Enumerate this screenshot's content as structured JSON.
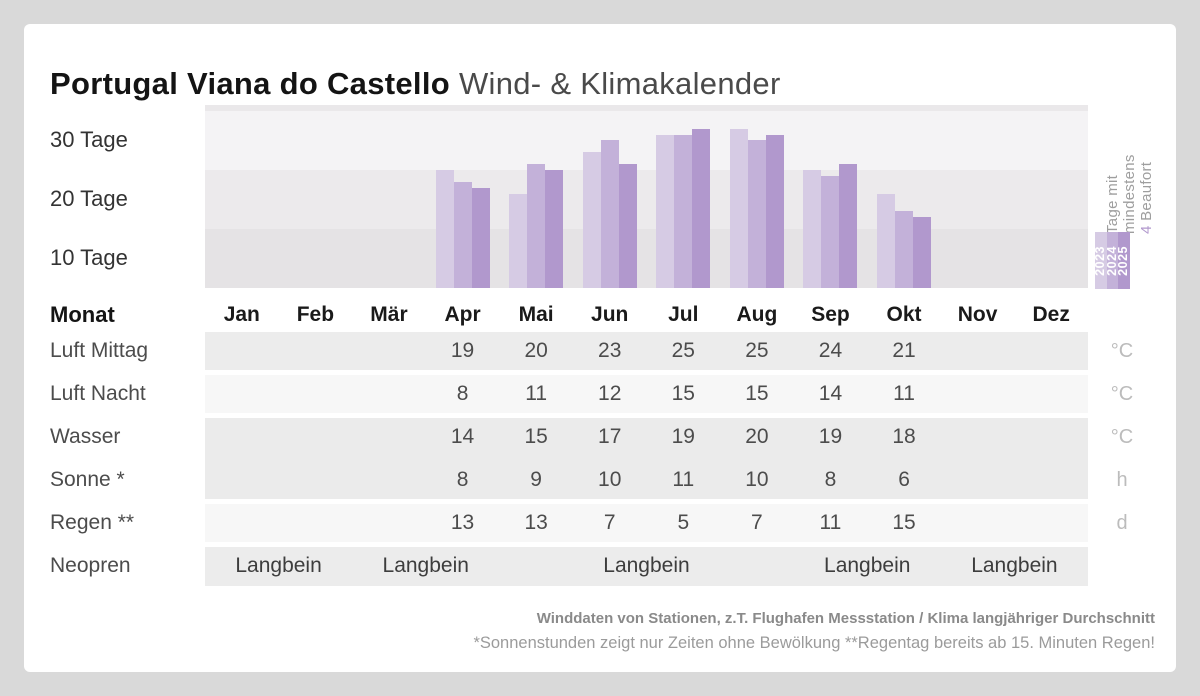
{
  "title": {
    "bold": "Portugal Viana do Castello",
    "regular": "Wind- & Klimakalender"
  },
  "chart_data": {
    "type": "bar",
    "title": "Tage mit mindestens 4 Beaufort",
    "categories": [
      "Jan",
      "Feb",
      "Mär",
      "Apr",
      "Mai",
      "Jun",
      "Jul",
      "Aug",
      "Sep",
      "Okt",
      "Nov",
      "Dez"
    ],
    "series": [
      {
        "name": "2023",
        "color": "#d6cbe4",
        "values": [
          null,
          null,
          null,
          25,
          21,
          28,
          31,
          32,
          25,
          21,
          null,
          null
        ]
      },
      {
        "name": "2024",
        "color": "#c3b1d9",
        "values": [
          null,
          null,
          null,
          23,
          26,
          30,
          31,
          30,
          24,
          18,
          null,
          null
        ]
      },
      {
        "name": "2025",
        "color": "#b198cd",
        "values": [
          null,
          null,
          null,
          22,
          25,
          26,
          32,
          31,
          26,
          17,
          null,
          null
        ]
      }
    ],
    "ylabel": "Tage",
    "ylim": [
      5,
      36
    ],
    "yticks": [
      {
        "value": 30,
        "label": "30 Tage"
      },
      {
        "value": 20,
        "label": "20 Tage"
      },
      {
        "value": 10,
        "label": "10 Tage"
      }
    ],
    "band_boundaries": [
      15,
      25,
      35
    ],
    "band_colors": [
      "#e5e3e5",
      "#eceaec",
      "#f4f3f5",
      "#eae8ea"
    ],
    "legend_position": "right"
  },
  "legend": {
    "line1": "Tage mit",
    "line2": "mindestens",
    "num": "4",
    "word": "Beaufort",
    "num_color": "#b198cd"
  },
  "table": {
    "header_label": "Monat",
    "rows": [
      {
        "label": "Luft Mittag",
        "unit": "°C",
        "shade": "gray",
        "values": [
          null,
          null,
          null,
          19,
          20,
          23,
          25,
          25,
          24,
          21,
          null,
          null
        ]
      },
      {
        "label": "Luft Nacht",
        "unit": "°C",
        "shade": "light",
        "values": [
          null,
          null,
          null,
          8,
          11,
          12,
          15,
          15,
          14,
          11,
          null,
          null
        ]
      },
      {
        "label": "Wasser",
        "unit": "°C",
        "shade": "gray-tall",
        "values": [
          null,
          null,
          null,
          14,
          15,
          17,
          19,
          20,
          19,
          18,
          null,
          null
        ]
      },
      {
        "label": "Sonne *",
        "unit": "h",
        "shade": "none",
        "values": [
          null,
          null,
          null,
          8,
          9,
          10,
          11,
          10,
          8,
          6,
          null,
          null
        ]
      },
      {
        "label": "Regen **",
        "unit": "d",
        "shade": "light",
        "values": [
          null,
          null,
          null,
          13,
          13,
          7,
          5,
          7,
          11,
          15,
          null,
          null
        ]
      }
    ],
    "neopren": {
      "label": "Neopren",
      "shade": "gray",
      "entry_text": "Langbein",
      "entries": [
        {
          "start": 0,
          "span": 2
        },
        {
          "start": 2,
          "span": 2
        },
        {
          "start": 5,
          "span": 2
        },
        {
          "start": 8,
          "span": 2
        },
        {
          "start": 10,
          "span": 2
        }
      ]
    }
  },
  "footer": {
    "line1": "Winddaten von Stationen, z.T. Flughafen Messstation / Klima langjähriger Durchschnitt",
    "line2": "*Sonnenstunden zeigt nur Zeiten ohne Bewölkung  **Regentag bereits ab 15. Minuten Regen!"
  },
  "colors": {
    "background": "#d9d9d9",
    "card": "#ffffff",
    "row_gray": "#ececec",
    "row_light": "#f7f7f7"
  }
}
